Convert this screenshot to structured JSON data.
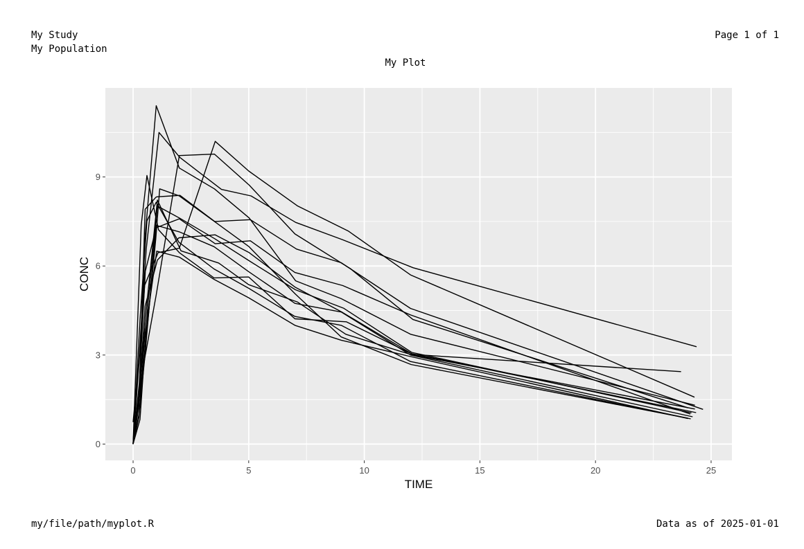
{
  "header": {
    "study": "My Study",
    "population": "My Population",
    "page": "Page 1 of 1"
  },
  "footer": {
    "path": "my/file/path/myplot.R",
    "data_date": "Data as of 2025-01-01"
  },
  "chart_data": {
    "type": "line",
    "title": "My Plot",
    "xlabel": "TIME",
    "ylabel": "CONC",
    "xlim": [
      -1.2,
      25.9
    ],
    "ylim": [
      -0.55,
      12.0
    ],
    "xticks": [
      0,
      5,
      10,
      15,
      20,
      25
    ],
    "yticks": [
      0,
      3,
      6,
      9
    ],
    "grid": true,
    "legend": "none",
    "colors": {
      "panel": "#EBEBEB",
      "grid": "#FFFFFF",
      "line": "#000000"
    },
    "series": [
      {
        "x": [
          0,
          0.25,
          0.57,
          1.12,
          2.02,
          3.82,
          5.1,
          7.03,
          9.05,
          12.12,
          24.37
        ],
        "y": [
          0.74,
          2.84,
          6.57,
          10.5,
          9.66,
          8.58,
          8.36,
          7.47,
          6.89,
          5.94,
          3.28
        ]
      },
      {
        "x": [
          0,
          0.27,
          0.52,
          0.98,
          1.02,
          2.03,
          3.53,
          5.07,
          7.07,
          9.0,
          12.0,
          24.65
        ],
        "y": [
          0,
          1.72,
          7.91,
          8.31,
          8.33,
          8.38,
          7.5,
          7.56,
          6.57,
          6.11,
          4.57,
          1.17
        ]
      },
      {
        "x": [
          0,
          0.25,
          0.5,
          1.0,
          2.0,
          3.52,
          5.02,
          7.03,
          9.0,
          12.0,
          24.3
        ],
        "y": [
          0,
          1.29,
          6.8,
          11.4,
          9.3,
          8.6,
          7.62,
          5.5,
          4.9,
          3.7,
          1.31
        ]
      },
      {
        "x": [
          0,
          0.35,
          0.6,
          1.1,
          2.0,
          3.5,
          5.0,
          7.0,
          9.22,
          12.1,
          23.7
        ],
        "y": [
          0,
          7.37,
          9.05,
          7.22,
          6.45,
          5.6,
          5.63,
          4.22,
          4.12,
          3.02,
          2.44
        ]
      },
      {
        "x": [
          0,
          0.3,
          0.63,
          1.05,
          2.02,
          3.53,
          5.03,
          7.02,
          9.1,
          12.05,
          24.15
        ],
        "y": [
          0,
          0.83,
          4.58,
          8.02,
          7.61,
          6.92,
          6.17,
          5.2,
          4.58,
          3.09,
          1.05
        ]
      },
      {
        "x": [
          0,
          0.5,
          0.98,
          1.15,
          2.0,
          3.52,
          5.0,
          7.0,
          9.0,
          12.02,
          24.12
        ],
        "y": [
          0,
          3.03,
          6.9,
          8.6,
          8.36,
          7.5,
          6.66,
          5.07,
          3.61,
          2.68,
          0.85
        ]
      },
      {
        "x": [
          0,
          0.27,
          0.52,
          1.0,
          2.0,
          3.5,
          5.0,
          7.0,
          9.0,
          12.0,
          24.2
        ],
        "y": [
          0,
          1.06,
          3.04,
          7.37,
          7.15,
          6.65,
          5.81,
          4.74,
          4.45,
          3.0,
          0.92
        ]
      },
      {
        "x": [
          0,
          0.27,
          0.57,
          1.05,
          2.07,
          3.7,
          5.0,
          7.1,
          9.2,
          12.0,
          24.3
        ],
        "y": [
          0.03,
          1.67,
          4.52,
          8.22,
          6.51,
          6.1,
          5.37,
          4.79,
          3.7,
          3.02,
          1.18
        ]
      },
      {
        "x": [
          0,
          0.5,
          1.0,
          2.0,
          3.52,
          5.03,
          7.0,
          9.4,
          12.1,
          24.0
        ],
        "y": [
          0,
          2.87,
          5.03,
          9.72,
          9.77,
          8.72,
          7.08,
          5.91,
          4.2,
          1.22
        ]
      },
      {
        "x": [
          0,
          0.25,
          0.52,
          1.05,
          1.98,
          3.55,
          5.02,
          7.0,
          9.0,
          12.04,
          24.35
        ],
        "y": [
          0,
          1.55,
          4.65,
          6.2,
          6.95,
          7.05,
          6.45,
          5.29,
          4.46,
          3.05,
          1.06
        ]
      },
      {
        "x": [
          0,
          0.27,
          0.53,
          1.0,
          2.0,
          3.55,
          5.07,
          7.0,
          9.07,
          12.0,
          24.1
        ],
        "y": [
          0,
          2.05,
          5.83,
          7.29,
          7.59,
          6.75,
          6.85,
          5.78,
          5.34,
          4.35,
          1.01
        ]
      },
      {
        "x": [
          0,
          0.5,
          1.08,
          2.0,
          3.55,
          5.0,
          7.1,
          9.3,
          12.0,
          24.28
        ],
        "y": [
          0,
          5.35,
          6.45,
          6.6,
          10.2,
          9.2,
          8.03,
          7.18,
          5.7,
          1.58
        ]
      },
      {
        "x": [
          0,
          0.3,
          0.6,
          1.0,
          1.98,
          3.5,
          5.0,
          7.0,
          9.0,
          12.0,
          24.0
        ],
        "y": [
          0,
          4.2,
          7.52,
          8.15,
          6.8,
          5.9,
          5.25,
          4.3,
          4.0,
          2.78,
          0.87
        ]
      },
      {
        "x": [
          0,
          0.25,
          0.5,
          1.02,
          2.0,
          3.5,
          5.0,
          7.0,
          9.0,
          12.0,
          24.0
        ],
        "y": [
          0,
          0.9,
          3.6,
          6.5,
          6.3,
          5.55,
          4.93,
          4.0,
          3.5,
          2.95,
          0.86
        ]
      }
    ]
  }
}
